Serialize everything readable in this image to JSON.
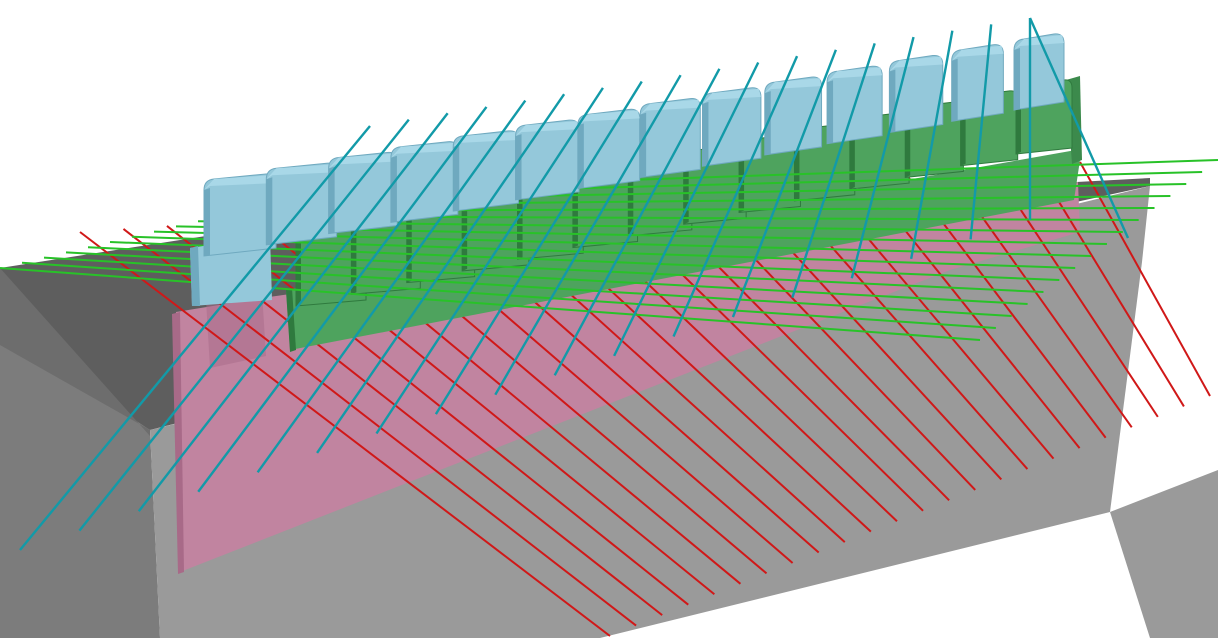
{
  "scene": {
    "description_name": "3d-comb-plate-render",
    "colors": {
      "background": "#ffffff",
      "base_top": "#5e5e5e",
      "base_front": "#9a9a9a",
      "base_side": "#7c7c7c",
      "base_side_dark": "#6d6d6d",
      "pink_plate": "#c184a0",
      "pink_plate_edge": "#a86a88",
      "green_plate": "#4ea35e",
      "green_plate_edge": "#2f7a3e",
      "green_plate_dark": "#3c8a4c",
      "blue_plate": "#94c8da",
      "blue_plate_top": "#a9d8e8",
      "blue_plate_edge": "#6fa9bf",
      "red_line": "#d01818",
      "green_line": "#28c228",
      "teal_line": "#129aa8"
    },
    "teeth_count": 14,
    "red_line_count": 24,
    "green_line_count": 16,
    "teal_line_count": 18
  }
}
